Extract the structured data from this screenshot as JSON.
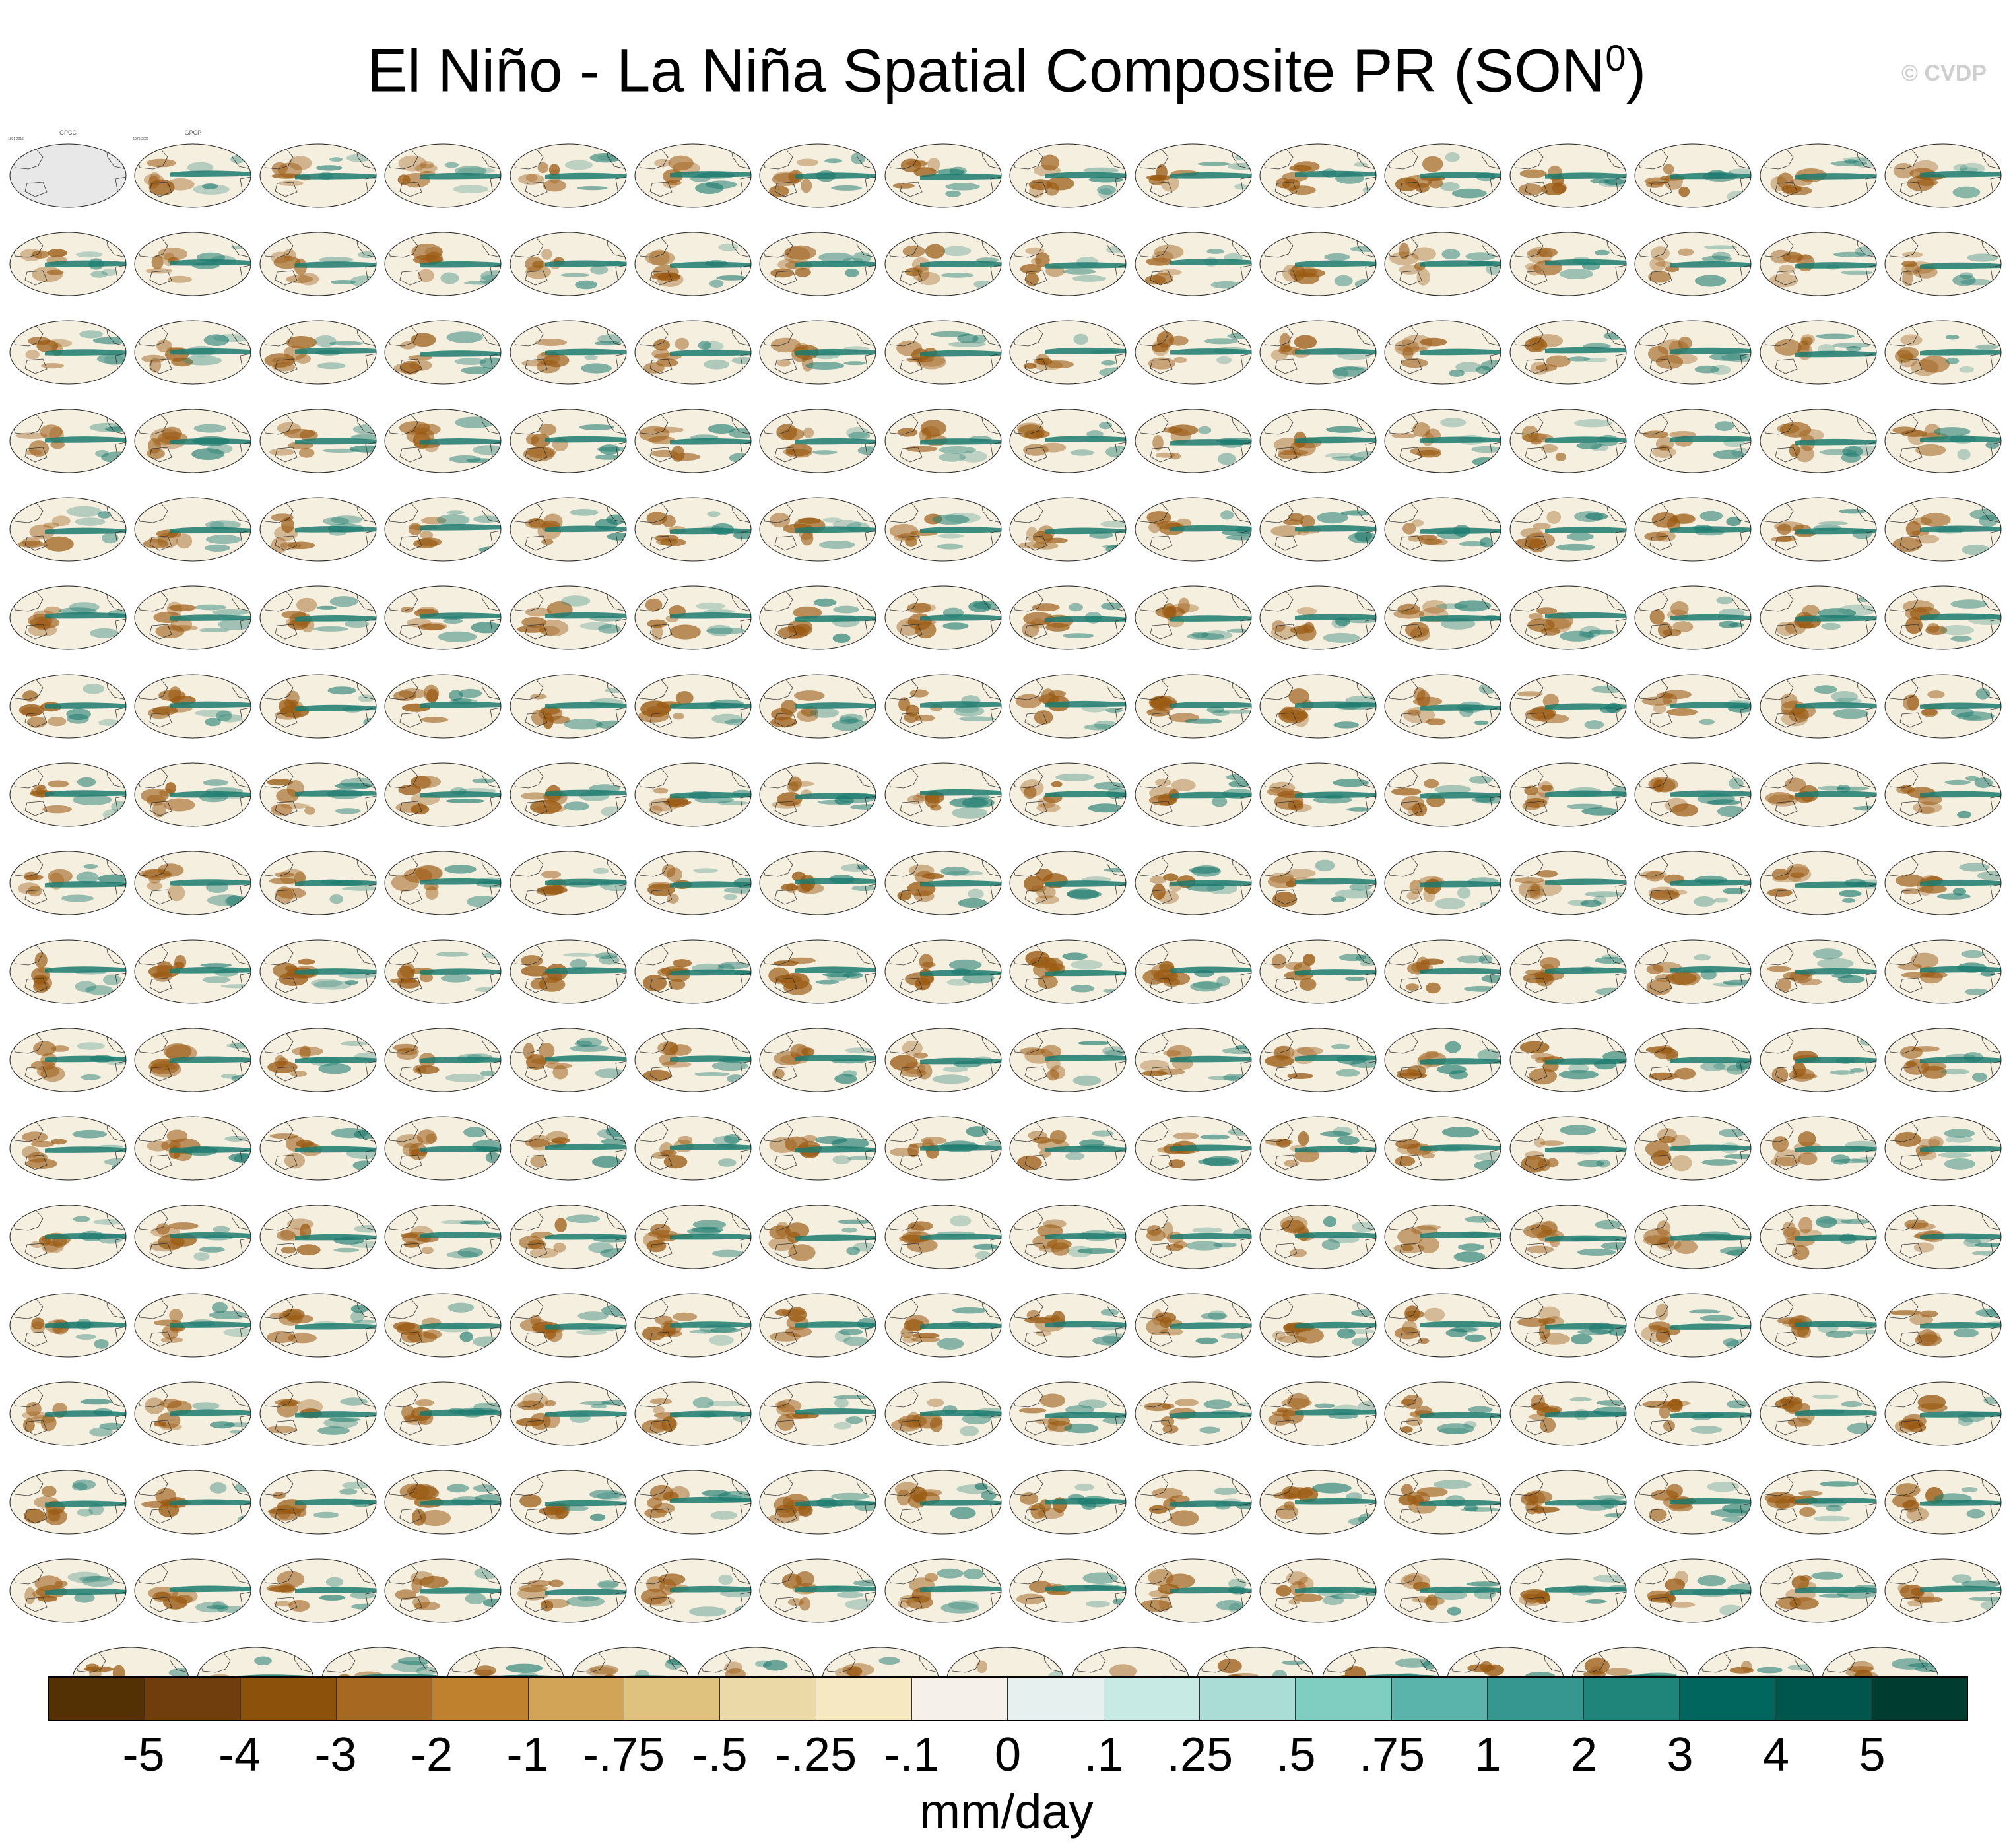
{
  "title": "El Niño - La Niña Spatial Composite PR (SON",
  "title_superscript": "0",
  "title_close": ")",
  "credit": "© CVDP",
  "map_panels": {
    "description_shown": "small Pacific-centered precipitation composite maps, one per dataset",
    "observations": [
      {
        "title": "GPCC",
        "years": "1891-2016"
      },
      {
        "title": "GPCP",
        "years": "1979-2020"
      }
    ],
    "model_family_colors": {
      "ACCESS-ESM1-5": "#3a7bbf",
      "CanESM5": "#7fbf7f",
      "CESM1": "#e08a3c",
      "CESM2": "#9a8fd8",
      "other": "#d9c27a"
    },
    "anomaly_colors": {
      "dry": "#9a5a12",
      "wet": "#1b7a6e",
      "neutral": "#f5efe0"
    }
  },
  "colorbar": {
    "units": "mm/day",
    "colors": [
      "#543005",
      "#6f3e0c",
      "#8c510a",
      "#a76821",
      "#bf812d",
      "#d2a458",
      "#dfc27d",
      "#ecd9a8",
      "#f6e8c3",
      "#f5f1ea",
      "#e6f0ee",
      "#c7eae5",
      "#a9ddd5",
      "#80cdc1",
      "#5ab4ac",
      "#35978f",
      "#1f8479",
      "#01665e",
      "#00564d",
      "#003c30"
    ],
    "tick_labels": [
      "-5",
      "-4",
      "-3",
      "-2",
      "-1",
      "-.75",
      "-.5",
      "-.25",
      "-.1",
      "0",
      ".1",
      ".25",
      ".5",
      ".75",
      "1",
      "2",
      "3",
      "4",
      "5"
    ]
  }
}
